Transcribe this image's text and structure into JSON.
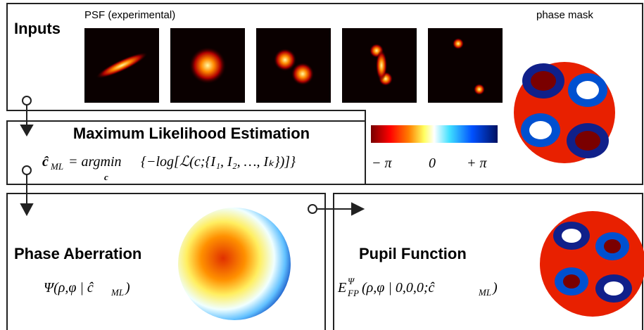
{
  "inputs": {
    "title": "Inputs",
    "psf_label": "PSF (experimental)",
    "phase_mask_label": "phase mask"
  },
  "mle": {
    "title": "Maximum Likelihood Estimation",
    "formula": {
      "lhs": "ĉ",
      "lhs_sub": "ML",
      "operator": "= argmin",
      "operator_sub": "c",
      "body": "{−log[ℒ(c;{I₁, I₂, …, Iₖ})]}"
    }
  },
  "colorbar": {
    "labels": [
      "− π",
      "0",
      "+ π"
    ]
  },
  "phase_aberration": {
    "title": "Phase Aberration",
    "formula": {
      "main": "Ψ(ρ,φ | ĉ",
      "sub": "ML",
      "close": ")"
    }
  },
  "pupil_function": {
    "title": "Pupil Function",
    "formula": {
      "main": "E",
      "sup": "Ψ",
      "sub": "FP",
      "rest": "(ρ,φ | 0,0,0;ĉ",
      "sub2": "ML",
      "close": ")"
    }
  }
}
